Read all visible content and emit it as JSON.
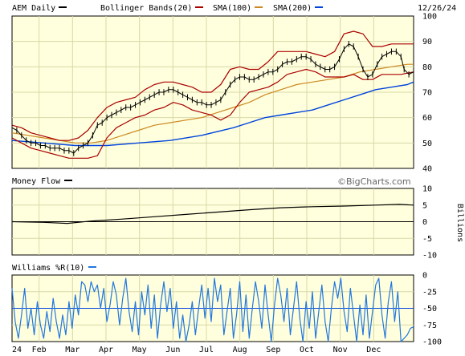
{
  "chart_data": {
    "type": "line",
    "date": "12/26/24",
    "watermark": "©BigCharts.com",
    "colors": {
      "panel_bg": "#ffffdd",
      "grid": "#d8d8a8",
      "price": "#000000",
      "bollinger": "#aa0000",
      "sma100": "#cc8822",
      "sma200": "#0044dd",
      "money_flow": "#000000",
      "williams": "#2277dd",
      "ref_line": "#0044dd"
    },
    "months": [
      "24",
      "Feb",
      "Mar",
      "Apr",
      "May",
      "Jun",
      "Jul",
      "Aug",
      "Sep",
      "Oct",
      "Nov",
      "Dec"
    ],
    "price_panel": {
      "legend": [
        {
          "label": "AEM Daily",
          "color": "#000000"
        },
        {
          "label": "Bollinger Bands(20)",
          "color": "#aa0000"
        },
        {
          "label": "SMA(100)",
          "color": "#cc8822"
        },
        {
          "label": "SMA(200)",
          "color": "#0044dd"
        }
      ],
      "ylim": [
        40,
        100
      ],
      "yticks": [
        "100",
        "90",
        "80",
        "70",
        "60",
        "50",
        "40"
      ],
      "price": [
        [
          0,
          56
        ],
        [
          6,
          55
        ],
        [
          12,
          53
        ],
        [
          18,
          51
        ],
        [
          24,
          50
        ],
        [
          30,
          50
        ],
        [
          36,
          49
        ],
        [
          42,
          49
        ],
        [
          48,
          48
        ],
        [
          54,
          48
        ],
        [
          60,
          48
        ],
        [
          66,
          47
        ],
        [
          72,
          47
        ],
        [
          78,
          46
        ],
        [
          84,
          48
        ],
        [
          90,
          49
        ],
        [
          96,
          50
        ],
        [
          102,
          53
        ],
        [
          108,
          57
        ],
        [
          114,
          58
        ],
        [
          120,
          60
        ],
        [
          126,
          61
        ],
        [
          132,
          62
        ],
        [
          138,
          63
        ],
        [
          144,
          64
        ],
        [
          150,
          64
        ],
        [
          156,
          65
        ],
        [
          162,
          66
        ],
        [
          168,
          67
        ],
        [
          174,
          68
        ],
        [
          180,
          69
        ],
        [
          186,
          70
        ],
        [
          192,
          70
        ],
        [
          198,
          71
        ],
        [
          204,
          71
        ],
        [
          210,
          70
        ],
        [
          216,
          69
        ],
        [
          222,
          68
        ],
        [
          228,
          67
        ],
        [
          234,
          66
        ],
        [
          240,
          66
        ],
        [
          246,
          65
        ],
        [
          252,
          65
        ],
        [
          258,
          66
        ],
        [
          264,
          67
        ],
        [
          270,
          70
        ],
        [
          276,
          73
        ],
        [
          282,
          75
        ],
        [
          288,
          76
        ],
        [
          294,
          76
        ],
        [
          300,
          75
        ],
        [
          306,
          75
        ],
        [
          312,
          76
        ],
        [
          318,
          77
        ],
        [
          324,
          78
        ],
        [
          330,
          78
        ],
        [
          336,
          79
        ],
        [
          342,
          81
        ],
        [
          348,
          82
        ],
        [
          354,
          82
        ],
        [
          360,
          83
        ],
        [
          366,
          84
        ],
        [
          372,
          84
        ],
        [
          378,
          83
        ],
        [
          384,
          81
        ],
        [
          390,
          80
        ],
        [
          396,
          79
        ],
        [
          402,
          79
        ],
        [
          408,
          80
        ],
        [
          414,
          83
        ],
        [
          420,
          87
        ],
        [
          426,
          89
        ],
        [
          432,
          88
        ],
        [
          438,
          84
        ],
        [
          444,
          79
        ],
        [
          450,
          76
        ],
        [
          456,
          77
        ],
        [
          462,
          81
        ],
        [
          468,
          84
        ],
        [
          474,
          85
        ],
        [
          480,
          86
        ],
        [
          486,
          86
        ],
        [
          492,
          84
        ],
        [
          496,
          79
        ],
        [
          502,
          77
        ],
        [
          508,
          78
        ]
      ],
      "boll_upper": [
        [
          0,
          57
        ],
        [
          12,
          56
        ],
        [
          24,
          54
        ],
        [
          36,
          53
        ],
        [
          48,
          52
        ],
        [
          60,
          51
        ],
        [
          72,
          51
        ],
        [
          84,
          52
        ],
        [
          96,
          55
        ],
        [
          108,
          60
        ],
        [
          120,
          64
        ],
        [
          132,
          66
        ],
        [
          144,
          67
        ],
        [
          156,
          68
        ],
        [
          168,
          71
        ],
        [
          180,
          73
        ],
        [
          192,
          74
        ],
        [
          204,
          74
        ],
        [
          216,
          73
        ],
        [
          228,
          72
        ],
        [
          240,
          70
        ],
        [
          252,
          70
        ],
        [
          264,
          73
        ],
        [
          276,
          79
        ],
        [
          288,
          80
        ],
        [
          300,
          79
        ],
        [
          312,
          79
        ],
        [
          324,
          82
        ],
        [
          336,
          86
        ],
        [
          348,
          86
        ],
        [
          360,
          86
        ],
        [
          372,
          86
        ],
        [
          384,
          85
        ],
        [
          396,
          84
        ],
        [
          408,
          86
        ],
        [
          420,
          93
        ],
        [
          432,
          94
        ],
        [
          444,
          93
        ],
        [
          456,
          88
        ],
        [
          468,
          88
        ],
        [
          480,
          89
        ],
        [
          492,
          89
        ],
        [
          508,
          89
        ]
      ],
      "boll_lower": [
        [
          0,
          52
        ],
        [
          12,
          50
        ],
        [
          24,
          48
        ],
        [
          36,
          47
        ],
        [
          48,
          46
        ],
        [
          60,
          45
        ],
        [
          72,
          44
        ],
        [
          84,
          44
        ],
        [
          96,
          44
        ],
        [
          108,
          45
        ],
        [
          120,
          52
        ],
        [
          132,
          56
        ],
        [
          144,
          58
        ],
        [
          156,
          60
        ],
        [
          168,
          61
        ],
        [
          180,
          63
        ],
        [
          192,
          64
        ],
        [
          204,
          66
        ],
        [
          216,
          65
        ],
        [
          228,
          63
        ],
        [
          240,
          62
        ],
        [
          252,
          61
        ],
        [
          264,
          59
        ],
        [
          276,
          61
        ],
        [
          288,
          66
        ],
        [
          300,
          70
        ],
        [
          312,
          71
        ],
        [
          324,
          72
        ],
        [
          336,
          74
        ],
        [
          348,
          77
        ],
        [
          360,
          78
        ],
        [
          372,
          79
        ],
        [
          384,
          78
        ],
        [
          396,
          76
        ],
        [
          408,
          76
        ],
        [
          420,
          76
        ],
        [
          432,
          77
        ],
        [
          444,
          75
        ],
        [
          456,
          75
        ],
        [
          468,
          77
        ],
        [
          480,
          77
        ],
        [
          492,
          77
        ],
        [
          508,
          78
        ]
      ],
      "sma100": [
        [
          0,
          54
        ],
        [
          20,
          53
        ],
        [
          40,
          52
        ],
        [
          60,
          51
        ],
        [
          80,
          50
        ],
        [
          100,
          50
        ],
        [
          120,
          51
        ],
        [
          140,
          53
        ],
        [
          160,
          55
        ],
        [
          180,
          57
        ],
        [
          200,
          58
        ],
        [
          220,
          59
        ],
        [
          240,
          60
        ],
        [
          260,
          62
        ],
        [
          280,
          64
        ],
        [
          300,
          66
        ],
        [
          320,
          69
        ],
        [
          340,
          71
        ],
        [
          360,
          73
        ],
        [
          380,
          74
        ],
        [
          400,
          75
        ],
        [
          420,
          76
        ],
        [
          440,
          78
        ],
        [
          460,
          79
        ],
        [
          480,
          80
        ],
        [
          500,
          81
        ],
        [
          508,
          81
        ]
      ],
      "sma200": [
        [
          0,
          51
        ],
        [
          40,
          50
        ],
        [
          80,
          49
        ],
        [
          120,
          49
        ],
        [
          160,
          50
        ],
        [
          200,
          51
        ],
        [
          240,
          53
        ],
        [
          280,
          56
        ],
        [
          300,
          58
        ],
        [
          320,
          60
        ],
        [
          340,
          61
        ],
        [
          360,
          62
        ],
        [
          380,
          63
        ],
        [
          400,
          65
        ],
        [
          420,
          67
        ],
        [
          440,
          69
        ],
        [
          460,
          71
        ],
        [
          480,
          72
        ],
        [
          500,
          73
        ],
        [
          508,
          74
        ]
      ]
    },
    "money_flow_panel": {
      "label": "Money Flow",
      "ylabel": "Billions",
      "ylim": [
        -10,
        10
      ],
      "yticks": [
        "10",
        "5",
        "0",
        "-5",
        "-10"
      ],
      "values": [
        [
          0,
          0
        ],
        [
          40,
          -0.2
        ],
        [
          70,
          -0.5
        ],
        [
          100,
          0.2
        ],
        [
          140,
          0.8
        ],
        [
          180,
          1.5
        ],
        [
          220,
          2.2
        ],
        [
          260,
          2.9
        ],
        [
          300,
          3.6
        ],
        [
          340,
          4.2
        ],
        [
          380,
          4.5
        ],
        [
          420,
          4.7
        ],
        [
          460,
          5.0
        ],
        [
          490,
          5.2
        ],
        [
          508,
          5.0
        ]
      ]
    },
    "williams_panel": {
      "label": "Williams %R(10)",
      "ylim": [
        -100,
        0
      ],
      "yticks": [
        "0",
        "-25",
        "-50",
        "-75",
        "-100"
      ],
      "reference": -50,
      "values": [
        [
          0,
          -20
        ],
        [
          4,
          -70
        ],
        [
          8,
          -95
        ],
        [
          12,
          -60
        ],
        [
          16,
          -20
        ],
        [
          20,
          -80
        ],
        [
          24,
          -50
        ],
        [
          28,
          -90
        ],
        [
          32,
          -40
        ],
        [
          36,
          -75
        ],
        [
          40,
          -95
        ],
        [
          44,
          -55
        ],
        [
          48,
          -85
        ],
        [
          52,
          -35
        ],
        [
          56,
          -70
        ],
        [
          60,
          -95
        ],
        [
          64,
          -60
        ],
        [
          68,
          -90
        ],
        [
          72,
          -40
        ],
        [
          76,
          -80
        ],
        [
          80,
          -30
        ],
        [
          84,
          -60
        ],
        [
          88,
          -10
        ],
        [
          92,
          -15
        ],
        [
          96,
          -40
        ],
        [
          100,
          -10
        ],
        [
          104,
          -25
        ],
        [
          108,
          -15
        ],
        [
          112,
          -50
        ],
        [
          116,
          -20
        ],
        [
          120,
          -70
        ],
        [
          124,
          -45
        ],
        [
          128,
          -10
        ],
        [
          132,
          -30
        ],
        [
          136,
          -75
        ],
        [
          140,
          -35
        ],
        [
          144,
          -5
        ],
        [
          148,
          -55
        ],
        [
          152,
          -85
        ],
        [
          156,
          -40
        ],
        [
          160,
          -90
        ],
        [
          164,
          -25
        ],
        [
          168,
          -60
        ],
        [
          172,
          -15
        ],
        [
          176,
          -80
        ],
        [
          180,
          -30
        ],
        [
          184,
          -95
        ],
        [
          188,
          -45
        ],
        [
          192,
          -10
        ],
        [
          196,
          -55
        ],
        [
          200,
          -20
        ],
        [
          204,
          -80
        ],
        [
          208,
          -40
        ],
        [
          212,
          -95
        ],
        [
          216,
          -60
        ],
        [
          220,
          -100
        ],
        [
          224,
          -75
        ],
        [
          228,
          -40
        ],
        [
          232,
          -90
        ],
        [
          236,
          -50
        ],
        [
          240,
          -15
        ],
        [
          244,
          -65
        ],
        [
          248,
          -20
        ],
        [
          252,
          -70
        ],
        [
          256,
          -5
        ],
        [
          260,
          -40
        ],
        [
          264,
          -15
        ],
        [
          268,
          -90
        ],
        [
          272,
          -55
        ],
        [
          276,
          -20
        ],
        [
          280,
          -95
        ],
        [
          284,
          -60
        ],
        [
          288,
          -10
        ],
        [
          292,
          -85
        ],
        [
          296,
          -30
        ],
        [
          300,
          -95
        ],
        [
          304,
          -50
        ],
        [
          308,
          -10
        ],
        [
          312,
          -40
        ],
        [
          316,
          -80
        ],
        [
          320,
          -15
        ],
        [
          324,
          -60
        ],
        [
          328,
          -100
        ],
        [
          332,
          -45
        ],
        [
          336,
          -5
        ],
        [
          340,
          -30
        ],
        [
          344,
          -70
        ],
        [
          348,
          -20
        ],
        [
          352,
          -90
        ],
        [
          356,
          -50
        ],
        [
          360,
          -10
        ],
        [
          364,
          -65
        ],
        [
          368,
          -100
        ],
        [
          372,
          -40
        ],
        [
          376,
          -80
        ],
        [
          380,
          -25
        ],
        [
          384,
          -95
        ],
        [
          388,
          -55
        ],
        [
          392,
          -15
        ],
        [
          396,
          -70
        ],
        [
          400,
          -100
        ],
        [
          404,
          -50
        ],
        [
          408,
          -10
        ],
        [
          412,
          -35
        ],
        [
          416,
          -5
        ],
        [
          420,
          -55
        ],
        [
          424,
          -85
        ],
        [
          428,
          -20
        ],
        [
          432,
          -60
        ],
        [
          436,
          -100
        ],
        [
          440,
          -45
        ],
        [
          444,
          -90
        ],
        [
          448,
          -30
        ],
        [
          452,
          -95
        ],
        [
          456,
          -55
        ],
        [
          460,
          -15
        ],
        [
          464,
          -5
        ],
        [
          468,
          -60
        ],
        [
          472,
          -95
        ],
        [
          476,
          -40
        ],
        [
          480,
          -10
        ],
        [
          484,
          -70
        ],
        [
          488,
          -25
        ],
        [
          492,
          -100
        ],
        [
          496,
          -95
        ],
        [
          500,
          -90
        ],
        [
          504,
          -80
        ],
        [
          508,
          -78
        ]
      ]
    }
  }
}
